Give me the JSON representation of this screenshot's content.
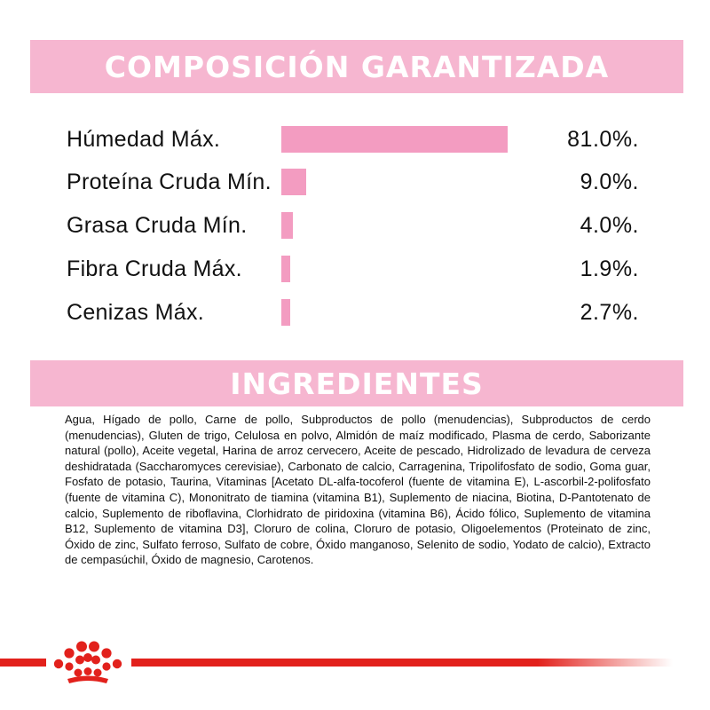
{
  "composition": {
    "title": "COMPOSICIÓN GARANTIZADA",
    "rows": [
      {
        "label": "Húmedad Máx.",
        "value": "81.0%.",
        "percent": 81.0
      },
      {
        "label": "Proteína Cruda Mín.",
        "value": "9.0%.",
        "percent": 9.0
      },
      {
        "label": "Grasa Cruda Mín.",
        "value": "4.0%.",
        "percent": 4.0
      },
      {
        "label": "Fibra Cruda Máx.",
        "value": "1.9%.",
        "percent": 1.9
      },
      {
        "label": "Cenizas Máx.",
        "value": "2.7%.",
        "percent": 2.7
      }
    ]
  },
  "ingredients": {
    "title": "INGREDIENTES",
    "text": "Agua, Hígado de pollo, Carne de pollo, Subproductos de pollo (menudencias), Subproductos de cerdo (menudencias), Gluten de trigo, Celulosa en polvo, Almidón de maíz modificado, Plasma de cerdo, Saborizante natural (pollo), Aceite vegetal, Harina de arroz cervecero, Aceite de pescado, Hidrolizado de levadura de cerveza deshidratada (Saccharomyces cerevisiae), Carbonato de calcio, Carragenina, Tripolifosfato de sodio, Goma guar, Fosfato de potasio, Taurina, Vitaminas [Acetato DL-alfa-tocoferol (fuente de vitamina E), L-ascorbil-2-polifosfato (fuente de vitamina C), Mononitrato de tiamina (vitamina B1), Suplemento de niacina, Biotina, D-Pantotenato de calcio, Suplemento de riboflavina, Clorhidrato de piridoxina (vitamina B6), Ácido fólico, Suplemento de vitamina B12, Suplemento de vitamina D3], Cloruro de colina, Cloruro de potasio, Oligoelementos (Proteinato de zinc, Óxido de zinc, Sulfato ferroso, Sulfato de cobre, Óxido manganoso, Selenito de sodio, Yodato de calcio), Extracto de cempasúchil, Óxido de magnesio, Carotenos."
  },
  "colors": {
    "banner": "#f6b6d0",
    "bar": "#f39cc1",
    "brand_red": "#e2211c"
  },
  "footer": {
    "logo_icon": "royal-canin-crown-icon"
  }
}
